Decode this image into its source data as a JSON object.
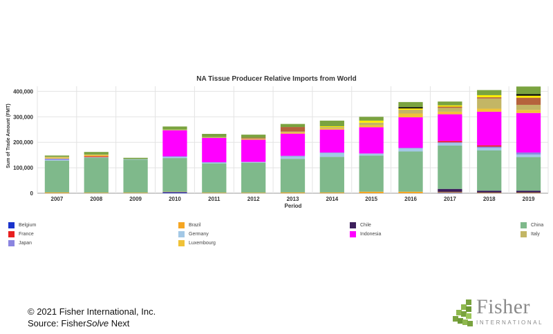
{
  "chart_data": {
    "type": "bar",
    "stacked": true,
    "title": "NA Tissue Producer Relative Imports from World",
    "xlabel": "Period",
    "ylabel": "Sum of Trade Amount (FMT)",
    "ylim": [
      0,
      420000
    ],
    "yticks": [
      0,
      100000,
      200000,
      300000,
      400000
    ],
    "ytick_labels": [
      "0",
      "100,000",
      "200,000",
      "300,000",
      "400,000"
    ],
    "grid": true,
    "legend_position": "bottom",
    "categories": [
      "2007",
      "2008",
      "2009",
      "2010",
      "2011",
      "2012",
      "2013",
      "2014",
      "2015",
      "2016",
      "2017",
      "2018",
      "2019"
    ],
    "series": [
      {
        "name": "Belgium",
        "color": "#1a33cc",
        "values": [
          0,
          0,
          0,
          4000,
          0,
          0,
          0,
          0,
          0,
          0,
          2000,
          0,
          0
        ]
      },
      {
        "name": "Brazil",
        "color": "#f5a623",
        "values": [
          3000,
          2000,
          2000,
          2000,
          2000,
          2000,
          3000,
          3000,
          6000,
          6000,
          3000,
          2000,
          2000
        ]
      },
      {
        "name": "Chile",
        "color": "#3d1f5c",
        "values": [
          0,
          0,
          0,
          0,
          0,
          0,
          0,
          0,
          0,
          0,
          12000,
          8000,
          8000
        ]
      },
      {
        "name": "China",
        "color": "#7fb98b",
        "values": [
          125000,
          138000,
          130000,
          132000,
          115000,
          118000,
          132000,
          140000,
          142000,
          158000,
          170000,
          158000,
          132000
        ]
      },
      {
        "name": "Germany",
        "color": "#a3c8e6",
        "values": [
          3000,
          2000,
          2000,
          5000,
          3000,
          3000,
          10000,
          15000,
          8000,
          12000,
          10000,
          10000,
          10000
        ]
      },
      {
        "name": "Japan",
        "color": "#8b85e0",
        "values": [
          5000,
          0,
          0,
          2000,
          2000,
          0,
          2000,
          2000,
          0,
          2000,
          3000,
          5000,
          8000
        ]
      },
      {
        "name": "France",
        "color": "#e82020",
        "values": [
          0,
          3000,
          0,
          0,
          0,
          0,
          0,
          0,
          0,
          0,
          5000,
          5000,
          0
        ]
      },
      {
        "name": "Indonesia",
        "color": "#ff00ff",
        "values": [
          0,
          0,
          0,
          102000,
          95000,
          87000,
          87000,
          90000,
          103000,
          120000,
          105000,
          132000,
          155000
        ]
      },
      {
        "name": "Luxembourg",
        "color": "#f0c238",
        "values": [
          4000,
          5000,
          0,
          0,
          0,
          3000,
          5000,
          5000,
          8000,
          15000,
          10000,
          12000,
          12000
        ]
      },
      {
        "name": "Italy",
        "color": "#c3b665",
        "values": [
          3000,
          2000,
          0,
          3000,
          4000,
          2000,
          3000,
          5000,
          10000,
          15000,
          15000,
          40000,
          20000
        ]
      },
      {
        "name": "",
        "color": "#b5633c",
        "values": [
          0,
          0,
          0,
          0,
          0,
          3000,
          18000,
          0,
          0,
          0,
          5000,
          5000,
          28000
        ]
      },
      {
        "name": "",
        "color": "#ffee00",
        "values": [
          0,
          0,
          0,
          0,
          0,
          0,
          0,
          3000,
          8000,
          5000,
          5000,
          8000,
          8000
        ]
      },
      {
        "name": "",
        "color": "#000000",
        "values": [
          0,
          0,
          0,
          0,
          0,
          0,
          0,
          0,
          0,
          5000,
          0,
          0,
          6000
        ]
      },
      {
        "name": "",
        "color": "#7aa33f",
        "values": [
          5000,
          10000,
          5000,
          12000,
          12000,
          12000,
          12000,
          22000,
          15000,
          20000,
          15000,
          20000,
          30000
        ]
      }
    ],
    "legend": [
      {
        "name": "Belgium",
        "color": "#1a33cc"
      },
      {
        "name": "Brazil",
        "color": "#f5a623"
      },
      {
        "name": "Chile",
        "color": "#3d1f5c"
      },
      {
        "name": "China",
        "color": "#7fb98b"
      },
      {
        "name": "France",
        "color": "#e82020"
      },
      {
        "name": "Germany",
        "color": "#a3c8e6"
      },
      {
        "name": "Indonesia",
        "color": "#ff00ff"
      },
      {
        "name": "Italy",
        "color": "#c3b665"
      },
      {
        "name": "Japan",
        "color": "#8b85e0"
      },
      {
        "name": "Luxembourg",
        "color": "#f0c238"
      }
    ]
  },
  "footer": {
    "copyright": "© 2021 Fisher International, Inc.",
    "source_prefix": "Source: Fisher",
    "source_italic": "Solve",
    "source_suffix": " Next"
  },
  "logo": {
    "word": "Fisher",
    "sub": "INTERNATIONAL",
    "color": "#8a8a8a",
    "accent": "#7aa33f"
  }
}
